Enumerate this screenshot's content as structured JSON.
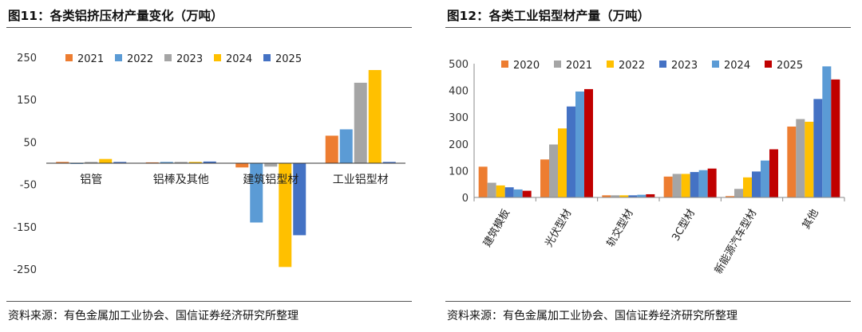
{
  "figures": [
    {
      "title": "图11：各类铝挤压材产量变化（万吨）",
      "source": "资料来源：有色金属加工业协会、国信证券经济研究所整理"
    },
    {
      "title": "图12：各类工业铝型材产量（万吨）",
      "source": "资料来源：有色金属加工业协会、国信证券经济研究所整理"
    }
  ],
  "chart_data": [
    {
      "type": "bar",
      "title": "图11：各类铝挤压材产量变化（万吨）",
      "xlabel": "",
      "ylabel": "",
      "ylim": [
        -250,
        250
      ],
      "yticks": [
        250,
        150,
        50,
        -50,
        -150,
        -250
      ],
      "legend_position": "top-left",
      "categories": [
        "铝管",
        "铝棒及其他",
        "建筑铝型材",
        "工业铝型材"
      ],
      "series": [
        {
          "name": "2021",
          "color": "#ED7D31",
          "values": [
            3,
            2,
            -10,
            65
          ]
        },
        {
          "name": "2022",
          "color": "#5B9BD5",
          "values": [
            1,
            3,
            -140,
            80
          ]
        },
        {
          "name": "2023",
          "color": "#A5A5A5",
          "values": [
            3,
            3,
            -8,
            190
          ]
        },
        {
          "name": "2024",
          "color": "#FFC000",
          "values": [
            10,
            3,
            -245,
            220
          ]
        },
        {
          "name": "2025",
          "color": "#4472C4",
          "values": [
            3,
            4,
            -170,
            3
          ]
        }
      ]
    },
    {
      "type": "bar",
      "title": "图12：各类工业铝型材产量（万吨）",
      "xlabel": "",
      "ylabel": "",
      "ylim": [
        0,
        500
      ],
      "yticks": [
        0,
        100,
        200,
        300,
        400,
        500
      ],
      "legend_position": "top",
      "categories": [
        "建筑模板",
        "光伏型材",
        "轨交型材",
        "3C型材",
        "新能源汽车型材",
        "其他"
      ],
      "series": [
        {
          "name": "2020",
          "color": "#ED7D31",
          "values": [
            115,
            142,
            8,
            78,
            5,
            265
          ]
        },
        {
          "name": "2021",
          "color": "#A5A5A5",
          "values": [
            55,
            198,
            8,
            88,
            32,
            293
          ]
        },
        {
          "name": "2022",
          "color": "#FFC000",
          "values": [
            45,
            258,
            8,
            88,
            75,
            283
          ]
        },
        {
          "name": "2023",
          "color": "#4472C4",
          "values": [
            38,
            340,
            8,
            95,
            97,
            368
          ]
        },
        {
          "name": "2024",
          "color": "#5B9BD5",
          "values": [
            30,
            396,
            10,
            102,
            138,
            490
          ]
        },
        {
          "name": "2025",
          "color": "#C00000",
          "values": [
            25,
            405,
            12,
            108,
            180,
            441
          ]
        }
      ]
    }
  ]
}
